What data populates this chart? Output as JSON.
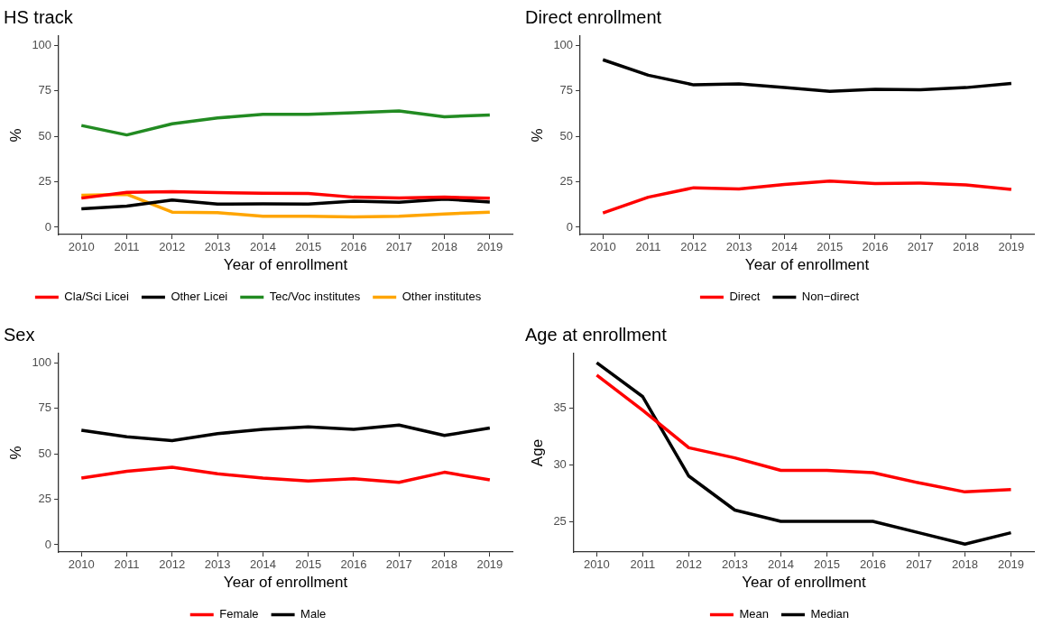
{
  "chart_data": [
    {
      "type": "line",
      "title": "HS track",
      "xlabel": "Year of enrollment",
      "ylabel": "%",
      "categories": [
        "2010",
        "2011",
        "2012",
        "2013",
        "2014",
        "2015",
        "2016",
        "2017",
        "2018",
        "2019"
      ],
      "ylim": [
        -4,
        105
      ],
      "yticks": [
        0,
        25,
        50,
        75,
        100
      ],
      "grid": false,
      "legend": "bottom",
      "series": [
        {
          "name": "Cla/Sci Licei",
          "color": "#ff0000",
          "values": [
            16,
            19.2,
            19.5,
            19,
            18.7,
            18.6,
            16.5,
            16.1,
            16.5,
            15.9
          ]
        },
        {
          "name": "Other Licei",
          "color": "#000000",
          "values": [
            10.1,
            11.6,
            15,
            12.7,
            12.9,
            12.7,
            14.3,
            13.7,
            15.5,
            13.8
          ]
        },
        {
          "name": "Tec/Voc institutes",
          "color": "#228b22",
          "values": [
            55.9,
            50.7,
            56.8,
            60,
            62,
            62,
            62.9,
            63.9,
            60.7,
            61.6
          ]
        },
        {
          "name": "Other institutes",
          "color": "#ffa500",
          "values": [
            17.6,
            18.1,
            8.3,
            8,
            6,
            6,
            5.7,
            6,
            7.3,
            8.3
          ]
        }
      ]
    },
    {
      "type": "line",
      "title": "Direct enrollment",
      "xlabel": "Year of enrollment",
      "ylabel": "%",
      "categories": [
        "2010",
        "2011",
        "2012",
        "2013",
        "2014",
        "2015",
        "2016",
        "2017",
        "2018",
        "2019"
      ],
      "ylim": [
        -4,
        105
      ],
      "yticks": [
        0,
        25,
        50,
        75,
        100
      ],
      "grid": false,
      "legend": "bottom",
      "series": [
        {
          "name": "Direct",
          "color": "#ff0000",
          "values": [
            7.8,
            16.5,
            21.7,
            21,
            23.5,
            25.3,
            24,
            24.2,
            23.3,
            20.8
          ]
        },
        {
          "name": "Non−direct",
          "color": "#000000",
          "values": [
            92,
            83.5,
            78.2,
            78.8,
            76.8,
            74.7,
            75.8,
            75.5,
            76.7,
            79
          ]
        }
      ]
    },
    {
      "type": "line",
      "title": "Sex",
      "xlabel": "Year of enrollment",
      "ylabel": "%",
      "categories": [
        "2010",
        "2011",
        "2012",
        "2013",
        "2014",
        "2015",
        "2016",
        "2017",
        "2018",
        "2019"
      ],
      "ylim": [
        -4,
        105
      ],
      "yticks": [
        0,
        25,
        50,
        75,
        100
      ],
      "grid": false,
      "legend": "bottom",
      "series": [
        {
          "name": "Female",
          "color": "#ff0000",
          "values": [
            36.6,
            40.3,
            42.6,
            39,
            36.6,
            35,
            36.3,
            34.3,
            39.8,
            35.6
          ]
        },
        {
          "name": "Male",
          "color": "#000000",
          "values": [
            62.9,
            59.3,
            57.2,
            61,
            63.4,
            64.7,
            63.4,
            65.7,
            60,
            64.1
          ]
        }
      ]
    },
    {
      "type": "line",
      "title": "Age at enrollment",
      "xlabel": "Year of enrollment",
      "ylabel": "Age",
      "categories": [
        "2010",
        "2011",
        "2012",
        "2013",
        "2014",
        "2015",
        "2016",
        "2017",
        "2018",
        "2019"
      ],
      "ylim": [
        22.3,
        39.8
      ],
      "yticks": [
        25,
        30,
        35
      ],
      "grid": false,
      "legend": "bottom",
      "series": [
        {
          "name": "Mean",
          "color": "#ff0000",
          "values": [
            37.9,
            34.8,
            31.5,
            30.6,
            29.5,
            29.5,
            29.3,
            28.4,
            27.6,
            27.8
          ]
        },
        {
          "name": "Median",
          "color": "#000000",
          "values": [
            39,
            36,
            29,
            26,
            25,
            25,
            25,
            24,
            23,
            24
          ]
        }
      ]
    }
  ]
}
